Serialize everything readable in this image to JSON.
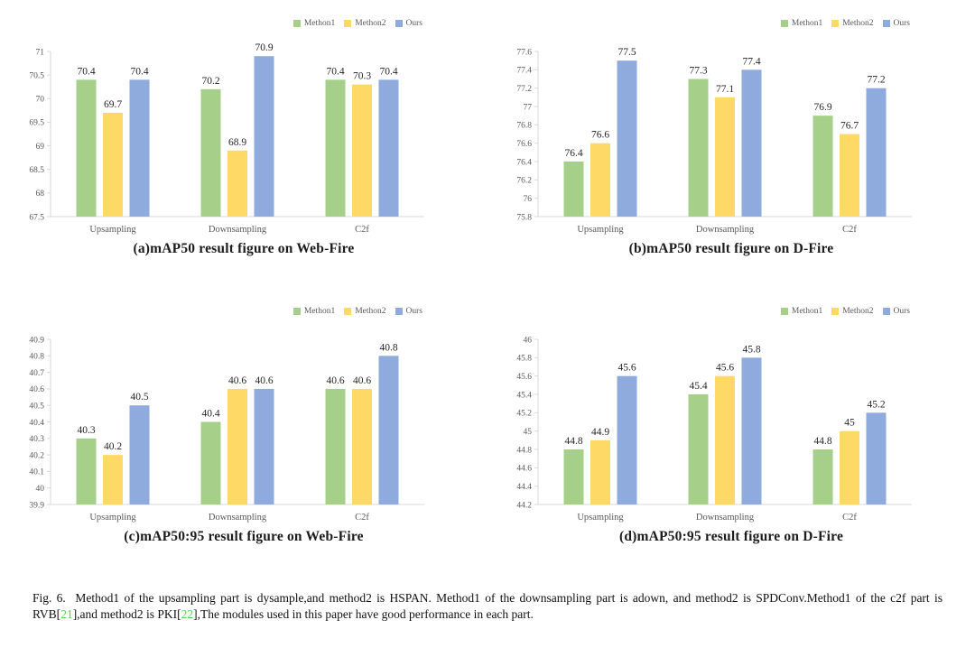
{
  "palette": {
    "series_green": "#a6d08a",
    "series_yellow": "#ffd966",
    "series_blue": "#8faadc",
    "axis_line": "#d9d9d9",
    "tick_label": "#595959",
    "category_label": "#595959",
    "value_label": "#262626",
    "legend_label": "#595959",
    "title_text": "#1c1c1c",
    "citation_green": "#55d455"
  },
  "chart_data": [
    {
      "id": "a",
      "type": "bar",
      "title": "(a)mAP50 result figure on Web-Fire",
      "categories": [
        "Upsampling",
        "Downsampling",
        "C2f"
      ],
      "series": [
        {
          "name": "Methon1",
          "color": "#a6d08a",
          "values": [
            70.4,
            70.2,
            70.4
          ]
        },
        {
          "name": "Methon2",
          "color": "#ffd966",
          "values": [
            69.7,
            68.9,
            70.3
          ]
        },
        {
          "name": "Ours",
          "color": "#8faadc",
          "values": [
            70.4,
            70.9,
            70.4
          ]
        }
      ],
      "ylim": [
        67.5,
        71
      ],
      "yticks": [
        "67.5",
        "68",
        "68.5",
        "69",
        "69.5",
        "70",
        "70.5",
        "71"
      ],
      "grid": false,
      "legend_position": "top-right",
      "value_labels": true
    },
    {
      "id": "b",
      "type": "bar",
      "title": "(b)mAP50 result figure on D-Fire",
      "categories": [
        "Upsampling",
        "Downsampling",
        "C2f"
      ],
      "series": [
        {
          "name": "Methon1",
          "color": "#a6d08a",
          "values": [
            76.4,
            77.3,
            76.9
          ]
        },
        {
          "name": "Methon2",
          "color": "#ffd966",
          "values": [
            76.6,
            77.1,
            76.7
          ]
        },
        {
          "name": "Ours",
          "color": "#8faadc",
          "values": [
            77.5,
            77.4,
            77.2
          ]
        }
      ],
      "ylim": [
        75.8,
        77.6
      ],
      "yticks": [
        "75.8",
        "76",
        "76.2",
        "76.4",
        "76.6",
        "76.8",
        "77",
        "77.2",
        "77.4",
        "77.6"
      ],
      "grid": false,
      "legend_position": "top-right",
      "value_labels": true
    },
    {
      "id": "c",
      "type": "bar",
      "title": "(c)mAP50:95 result figure on Web-Fire",
      "categories": [
        "Upsampling",
        "Downsampling",
        "C2f"
      ],
      "series": [
        {
          "name": "Methon1",
          "color": "#a6d08a",
          "values": [
            40.3,
            40.4,
            40.6
          ]
        },
        {
          "name": "Methon2",
          "color": "#ffd966",
          "values": [
            40.2,
            40.6,
            40.6
          ]
        },
        {
          "name": "Ours",
          "color": "#8faadc",
          "values": [
            40.5,
            40.6,
            40.8
          ]
        }
      ],
      "ylim": [
        39.9,
        40.9
      ],
      "yticks": [
        "39.9",
        "40",
        "40.1",
        "40.2",
        "40.3",
        "40.4",
        "40.5",
        "40.6",
        "40.7",
        "40.8",
        "40.9"
      ],
      "grid": false,
      "legend_position": "top-right",
      "value_labels": true
    },
    {
      "id": "d",
      "type": "bar",
      "title": "(d)mAP50:95 result figure on D-Fire",
      "categories": [
        "Upsampling",
        "Downsampling",
        "C2f"
      ],
      "series": [
        {
          "name": "Methon1",
          "color": "#a6d08a",
          "values": [
            44.8,
            45.4,
            44.8
          ]
        },
        {
          "name": "Methon2",
          "color": "#ffd966",
          "values": [
            44.9,
            45.6,
            45
          ]
        },
        {
          "name": "Ours",
          "color": "#8faadc",
          "values": [
            45.6,
            45.8,
            45.2
          ]
        }
      ],
      "ylim": [
        44.2,
        46
      ],
      "yticks": [
        "44.2",
        "44.4",
        "44.6",
        "44.8",
        "45",
        "45.2",
        "45.4",
        "45.6",
        "45.8",
        "46"
      ],
      "grid": false,
      "legend_position": "top-right",
      "value_labels": true
    }
  ],
  "figure": {
    "caption": {
      "segments": [
        {
          "text": "Fig. 6.  Method1 of the upsampling part is dysample,and method2 is HSPAN. Method1 of the downsampling part is adown, and method2 is SPDConv.Method1 of the c2f part is RVB[",
          "style": "normal"
        },
        {
          "text": "21",
          "style": "citation"
        },
        {
          "text": "],and method2 is PKI[",
          "style": "normal"
        },
        {
          "text": "22",
          "style": "citation"
        },
        {
          "text": "],The modules used in this paper have good performance in each part.",
          "style": "normal"
        }
      ]
    }
  }
}
